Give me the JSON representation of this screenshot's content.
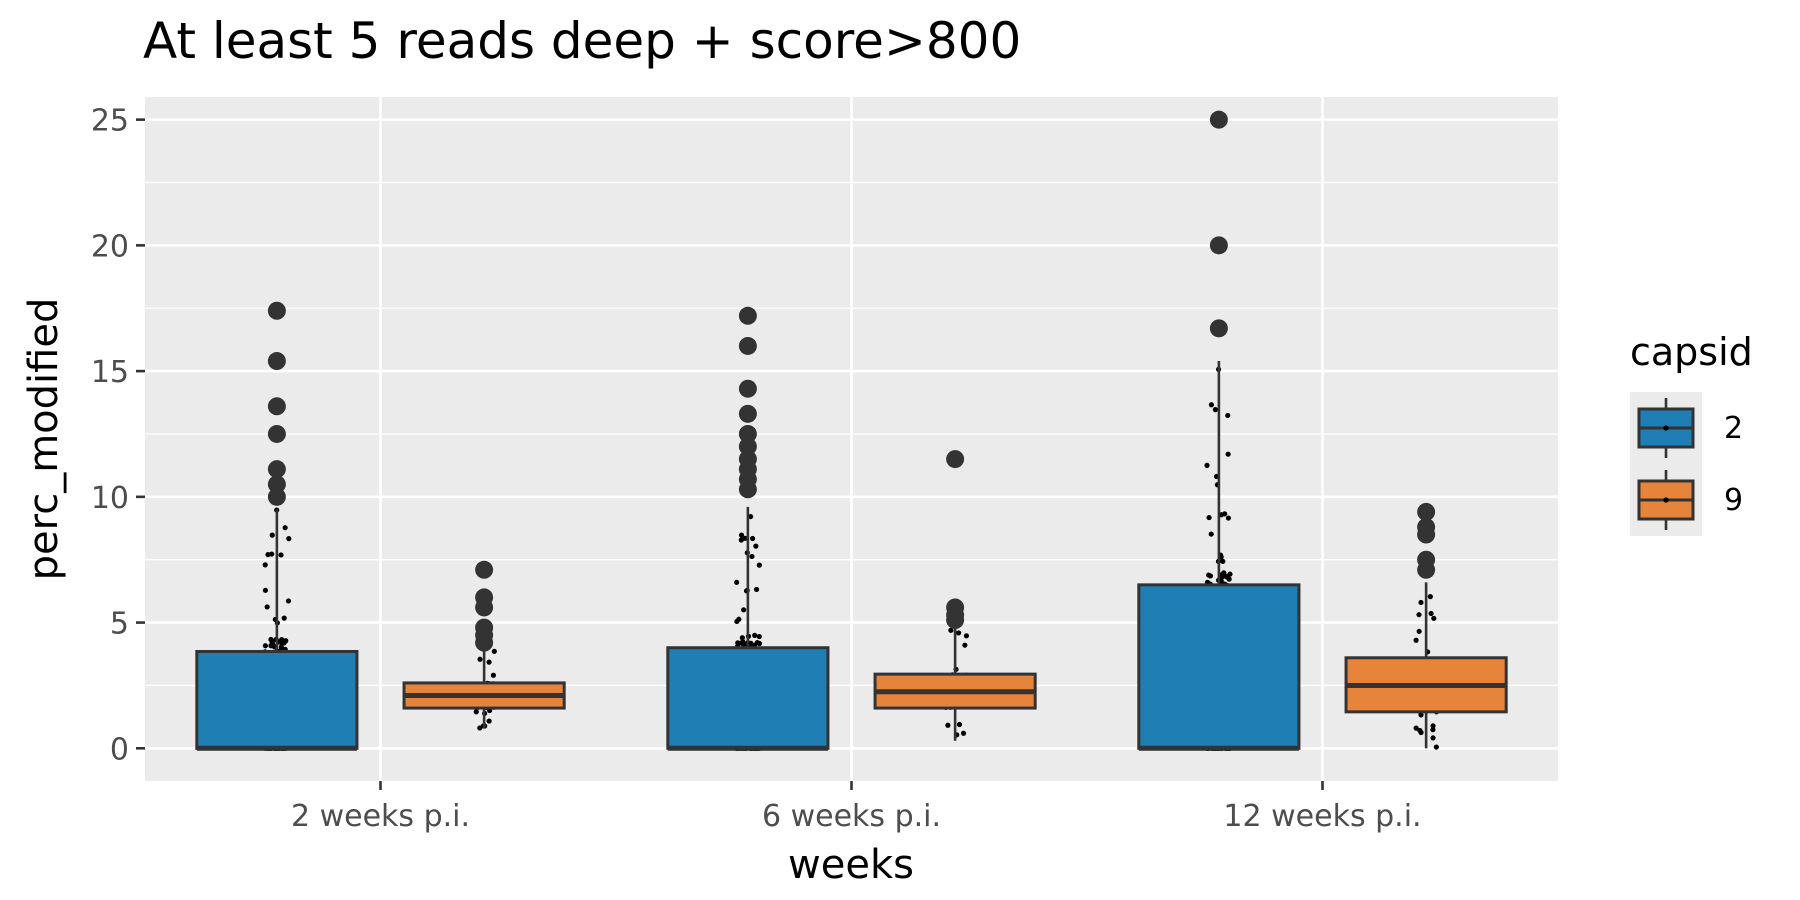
{
  "chart_data": {
    "type": "boxplot",
    "title": "At least 5 reads deep + score>800",
    "xlabel": "weeks",
    "ylabel": "perc_modified",
    "categories": [
      "2 weeks p.i.",
      "6 weeks p.i.",
      "12 weeks p.i."
    ],
    "ylim": [
      -1.3,
      25.9
    ],
    "yticks": [
      0,
      5,
      10,
      15,
      20,
      25
    ],
    "grid": true,
    "legend": {
      "title": "capsid",
      "position": "right"
    },
    "series": [
      {
        "name": "2",
        "color": "#1f7fb4",
        "boxes": [
          {
            "category": "2 weeks p.i.",
            "min": 0,
            "q1": 0,
            "median": 0,
            "q3": 3.85,
            "max": 9.5,
            "outliers": [
              10.0,
              10.5,
              11.1,
              12.5,
              13.6,
              15.4,
              17.4
            ]
          },
          {
            "category": "6 weeks p.i.",
            "min": 0,
            "q1": 0,
            "median": 0,
            "q3": 4.0,
            "max": 9.6,
            "outliers": [
              10.3,
              10.7,
              11.1,
              11.5,
              12.0,
              12.5,
              13.3,
              14.3,
              16.0,
              17.2
            ]
          },
          {
            "category": "12 weeks p.i.",
            "min": 0,
            "q1": 0,
            "median": 0,
            "q3": 6.5,
            "max": 15.4,
            "outliers": [
              16.7,
              20.0,
              25.0
            ]
          }
        ]
      },
      {
        "name": "9",
        "color": "#e6843c",
        "boxes": [
          {
            "category": "2 weeks p.i.",
            "min": 0.8,
            "q1": 1.6,
            "median": 2.1,
            "q3": 2.6,
            "max": 3.9,
            "outliers": [
              4.2,
              4.5,
              4.8,
              5.6,
              6.0,
              7.1
            ]
          },
          {
            "category": "6 weeks p.i.",
            "min": 0.3,
            "q1": 1.6,
            "median": 2.25,
            "q3": 2.95,
            "max": 4.9,
            "outliers": [
              5.1,
              5.3,
              5.6,
              11.5
            ]
          },
          {
            "category": "12 weeks p.i.",
            "min": 0,
            "q1": 1.45,
            "median": 2.5,
            "q3": 3.6,
            "max": 6.6,
            "outliers": [
              7.1,
              7.5,
              8.5,
              8.8,
              9.4
            ]
          }
        ]
      }
    ]
  }
}
